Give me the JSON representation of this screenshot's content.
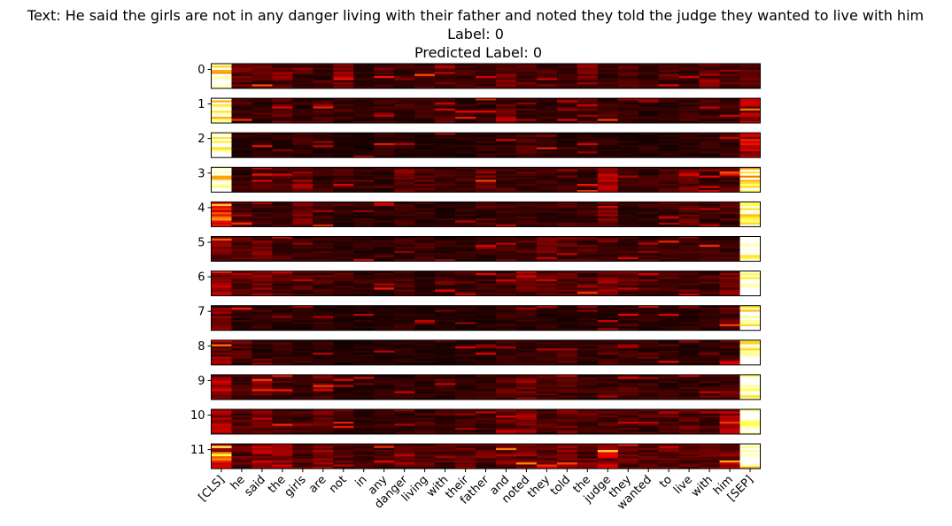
{
  "title": {
    "line1": "Text: He said the girls are not in any danger living with their father and noted they told the judge they wanted to live with him",
    "line2": "Label: 0",
    "line3": "Predicted Label: 0"
  },
  "chart_data": {
    "type": "heatmap",
    "colormap": "hot",
    "colormap_stops": [
      "#000000",
      "#7a0000",
      "#e60000",
      "#ff8c00",
      "#ffff40",
      "#ffffff"
    ],
    "tokens": [
      "[CLS]",
      "he",
      "said",
      "the",
      "girls",
      "are",
      "not",
      "in",
      "any",
      "danger",
      "living",
      "with",
      "their",
      "father",
      "and",
      "noted",
      "they",
      "told",
      "the",
      "judge",
      "they",
      "wanted",
      "to",
      "live",
      "with",
      "him",
      "[SEP]"
    ],
    "layers": [
      "0",
      "1",
      "2",
      "3",
      "4",
      "5",
      "6",
      "7",
      "8",
      "9",
      "10",
      "11"
    ],
    "rows_per_layer": 12,
    "layer_profiles": [
      [
        0.85,
        0.18,
        0.14,
        0.2,
        0.12,
        0.1,
        0.22,
        0.08,
        0.12,
        0.1,
        0.12,
        0.14,
        0.12,
        0.1,
        0.18,
        0.12,
        0.12,
        0.1,
        0.2,
        0.1,
        0.12,
        0.1,
        0.12,
        0.1,
        0.22,
        0.14,
        0.14
      ],
      [
        0.9,
        0.12,
        0.1,
        0.14,
        0.1,
        0.12,
        0.1,
        0.08,
        0.1,
        0.1,
        0.1,
        0.14,
        0.1,
        0.1,
        0.16,
        0.1,
        0.08,
        0.1,
        0.14,
        0.12,
        0.1,
        0.08,
        0.1,
        0.1,
        0.12,
        0.1,
        0.32
      ],
      [
        0.97,
        0.06,
        0.08,
        0.08,
        0.1,
        0.06,
        0.06,
        0.06,
        0.08,
        0.08,
        0.06,
        0.06,
        0.06,
        0.08,
        0.08,
        0.12,
        0.08,
        0.06,
        0.08,
        0.08,
        0.06,
        0.06,
        0.06,
        0.08,
        0.08,
        0.1,
        0.42
      ],
      [
        0.88,
        0.1,
        0.12,
        0.12,
        0.22,
        0.1,
        0.12,
        0.1,
        0.08,
        0.18,
        0.14,
        0.12,
        0.1,
        0.18,
        0.12,
        0.1,
        0.1,
        0.1,
        0.1,
        0.26,
        0.1,
        0.1,
        0.12,
        0.18,
        0.1,
        0.14,
        0.8
      ],
      [
        0.45,
        0.14,
        0.1,
        0.1,
        0.18,
        0.1,
        0.08,
        0.08,
        0.08,
        0.1,
        0.1,
        0.08,
        0.08,
        0.12,
        0.1,
        0.1,
        0.1,
        0.12,
        0.1,
        0.2,
        0.08,
        0.08,
        0.1,
        0.16,
        0.1,
        0.12,
        0.92
      ],
      [
        0.22,
        0.14,
        0.18,
        0.12,
        0.1,
        0.1,
        0.08,
        0.08,
        0.08,
        0.1,
        0.1,
        0.08,
        0.08,
        0.08,
        0.16,
        0.14,
        0.16,
        0.16,
        0.14,
        0.16,
        0.12,
        0.1,
        0.1,
        0.1,
        0.1,
        0.1,
        0.94
      ],
      [
        0.28,
        0.14,
        0.22,
        0.14,
        0.14,
        0.12,
        0.1,
        0.1,
        0.1,
        0.12,
        0.08,
        0.1,
        0.14,
        0.1,
        0.14,
        0.18,
        0.14,
        0.16,
        0.14,
        0.2,
        0.16,
        0.12,
        0.12,
        0.1,
        0.12,
        0.2,
        0.95
      ],
      [
        0.2,
        0.1,
        0.1,
        0.08,
        0.08,
        0.08,
        0.06,
        0.06,
        0.06,
        0.08,
        0.06,
        0.06,
        0.06,
        0.06,
        0.08,
        0.08,
        0.08,
        0.06,
        0.08,
        0.08,
        0.08,
        0.08,
        0.06,
        0.08,
        0.08,
        0.16,
        0.95
      ],
      [
        0.22,
        0.14,
        0.08,
        0.1,
        0.08,
        0.08,
        0.06,
        0.06,
        0.06,
        0.08,
        0.06,
        0.06,
        0.08,
        0.06,
        0.1,
        0.12,
        0.1,
        0.12,
        0.08,
        0.1,
        0.1,
        0.08,
        0.08,
        0.08,
        0.08,
        0.1,
        0.93
      ],
      [
        0.28,
        0.12,
        0.2,
        0.12,
        0.08,
        0.16,
        0.08,
        0.06,
        0.08,
        0.08,
        0.08,
        0.08,
        0.1,
        0.1,
        0.16,
        0.2,
        0.12,
        0.14,
        0.1,
        0.12,
        0.12,
        0.1,
        0.1,
        0.1,
        0.1,
        0.16,
        0.94
      ],
      [
        0.26,
        0.16,
        0.24,
        0.14,
        0.1,
        0.18,
        0.1,
        0.08,
        0.1,
        0.1,
        0.12,
        0.1,
        0.1,
        0.1,
        0.22,
        0.24,
        0.14,
        0.18,
        0.12,
        0.14,
        0.14,
        0.12,
        0.16,
        0.14,
        0.12,
        0.26,
        0.92
      ],
      [
        0.45,
        0.18,
        0.3,
        0.22,
        0.14,
        0.22,
        0.12,
        0.12,
        0.12,
        0.14,
        0.14,
        0.14,
        0.16,
        0.16,
        0.22,
        0.22,
        0.18,
        0.22,
        0.16,
        0.3,
        0.16,
        0.14,
        0.16,
        0.16,
        0.16,
        0.24,
        0.88
      ]
    ]
  }
}
